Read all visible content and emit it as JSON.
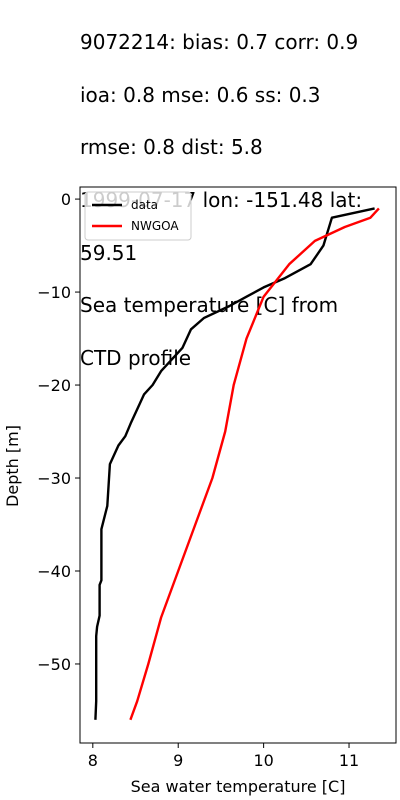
{
  "title_lines": [
    "9072214: bias: 0.7  corr: 0.9",
    " ioa: 0.8  mse: 0.6  ss: 0.3",
    "rmse: 0.8  dist: 5.8",
    "1999-07-17 lon: -151.48 lat:",
    "59.51",
    "Sea temperature [C] from",
    "CTD profile"
  ],
  "chart_data": {
    "type": "line",
    "xlabel": "Sea water temperature [C]",
    "ylabel": "Depth [m]",
    "xlim": [
      7.85,
      11.55
    ],
    "ylim": [
      -58.5,
      1.3
    ],
    "xticks": [
      8,
      9,
      10,
      11
    ],
    "yticks": [
      0,
      -10,
      -20,
      -30,
      -40,
      -50
    ],
    "grid": false,
    "legend_position": "top-left",
    "series": [
      {
        "name": "data",
        "color": "#000000",
        "points": [
          [
            11.3,
            -1
          ],
          [
            10.8,
            -2
          ],
          [
            10.7,
            -5
          ],
          [
            10.55,
            -7
          ],
          [
            10.25,
            -8.5
          ],
          [
            10.0,
            -9.5
          ],
          [
            9.8,
            -10.5
          ],
          [
            9.6,
            -11.5
          ],
          [
            9.3,
            -12.8
          ],
          [
            9.15,
            -14
          ],
          [
            9.05,
            -16
          ],
          [
            8.8,
            -18.5
          ],
          [
            8.7,
            -20
          ],
          [
            8.6,
            -21
          ],
          [
            8.55,
            -22
          ],
          [
            8.45,
            -24
          ],
          [
            8.38,
            -25.5
          ],
          [
            8.3,
            -26.5
          ],
          [
            8.2,
            -28.5
          ],
          [
            8.17,
            -33
          ],
          [
            8.1,
            -35.5
          ],
          [
            8.1,
            -41
          ],
          [
            8.08,
            -41.5
          ],
          [
            8.08,
            -44.8
          ],
          [
            8.05,
            -46
          ],
          [
            8.04,
            -47
          ],
          [
            8.04,
            -54
          ],
          [
            8.03,
            -56
          ]
        ]
      },
      {
        "name": "NWGOA",
        "color": "#ff0000",
        "points": [
          [
            11.35,
            -1
          ],
          [
            11.25,
            -2
          ],
          [
            10.95,
            -3
          ],
          [
            10.6,
            -4.5
          ],
          [
            10.3,
            -7
          ],
          [
            10.0,
            -10.5
          ],
          [
            9.8,
            -15
          ],
          [
            9.65,
            -20
          ],
          [
            9.55,
            -25
          ],
          [
            9.4,
            -30
          ],
          [
            9.2,
            -35
          ],
          [
            9.0,
            -40
          ],
          [
            8.8,
            -45
          ],
          [
            8.65,
            -50
          ],
          [
            8.52,
            -54
          ],
          [
            8.44,
            -56
          ]
        ]
      }
    ]
  }
}
